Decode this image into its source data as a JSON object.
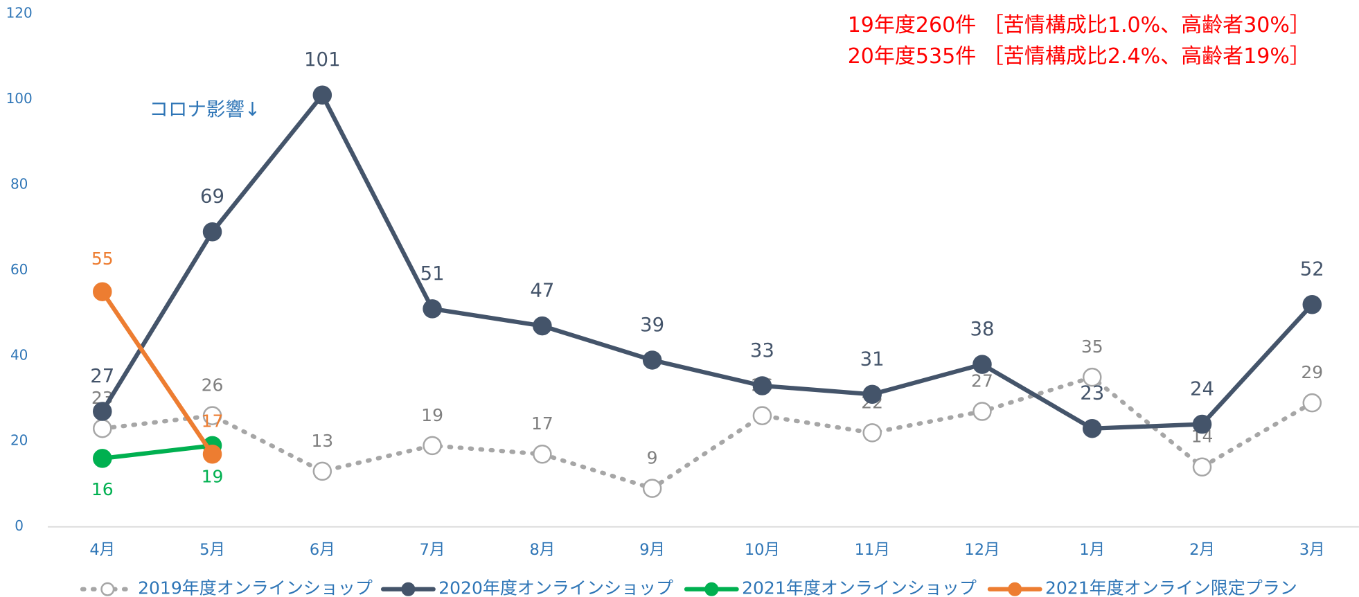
{
  "chart_data": {
    "type": "line",
    "categories": [
      "4月",
      "5月",
      "6月",
      "7月",
      "8月",
      "9月",
      "10月",
      "11月",
      "12月",
      "1月",
      "2月",
      "3月"
    ],
    "series": [
      {
        "name": "2019年度オンラインショップ",
        "color": "#a6a6a6",
        "label_color": "#7f7f7f",
        "line_style": "dotted",
        "marker_fill": "none",
        "values": [
          23,
          26,
          13,
          19,
          17,
          9,
          26,
          22,
          27,
          35,
          14,
          29
        ]
      },
      {
        "name": "2020年度オンラインショップ",
        "color": "#44546a",
        "label_color": "#44546a",
        "line_style": "solid",
        "marker_fill": "#44546a",
        "values": [
          27,
          69,
          101,
          51,
          47,
          39,
          33,
          31,
          38,
          23,
          24,
          52
        ]
      },
      {
        "name": "2021年度オンラインショップ",
        "color": "#00b050",
        "label_color": "#00b050",
        "line_style": "solid",
        "marker_fill": "#00b050",
        "values": [
          16,
          19,
          null,
          null,
          null,
          null,
          null,
          null,
          null,
          null,
          null,
          null
        ]
      },
      {
        "name": "2021年度オンライン限定プラン",
        "color": "#ed7d31",
        "label_color": "#ed7d31",
        "line_style": "solid",
        "marker_fill": "#ed7d31",
        "values": [
          55,
          17,
          null,
          null,
          null,
          null,
          null,
          null,
          null,
          null,
          null,
          null
        ]
      }
    ],
    "ylim": [
      0,
      120
    ],
    "yticks": [
      0,
      20,
      40,
      60,
      80,
      100,
      120
    ],
    "annotations": [
      "コロナ影響↓",
      "19年度260件 ［苦情構成比1.0%、高齢者30%］",
      "20年度535件 ［苦情構成比2.4%、高齢者19%］"
    ],
    "legend": "bottom"
  }
}
